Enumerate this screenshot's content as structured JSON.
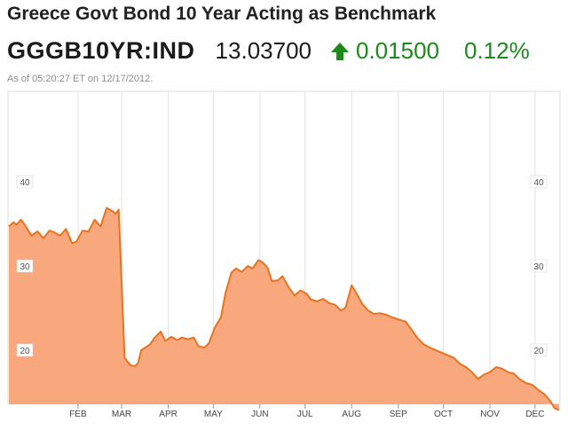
{
  "header": {
    "title": "Greece Govt Bond 10 Year Acting as Benchmark",
    "ticker": "GGGB10YR:IND",
    "price": "13.03700",
    "change": "0.01500",
    "change_pct": "0.12%",
    "timestamp": "As of 05:20:27 ET on 12/17/2012.",
    "arrow_icon": "up-arrow-icon",
    "up_color": "#1a8a1a"
  },
  "chart_data": {
    "type": "area",
    "title": "",
    "xlabel": "",
    "ylabel": "",
    "ylim": [
      10,
      45
    ],
    "xlim": [
      "2011-12-17",
      "2012-12-17"
    ],
    "y_ticks": [
      "40",
      "30",
      "20"
    ],
    "y_tick_values": [
      40,
      30,
      20
    ],
    "x_ticks": [
      {
        "label": "FEB",
        "date": "2012-02-01"
      },
      {
        "label": "MAR",
        "date": "2012-03-01"
      },
      {
        "label": "APR",
        "date": "2012-04-01"
      },
      {
        "label": "MAY",
        "date": "2012-05-01"
      },
      {
        "label": "JUN",
        "date": "2012-06-01"
      },
      {
        "label": "JUL",
        "date": "2012-07-01"
      },
      {
        "label": "AUG",
        "date": "2012-08-01"
      },
      {
        "label": "SEP",
        "date": "2012-09-01"
      },
      {
        "label": "OCT",
        "date": "2012-10-01"
      },
      {
        "label": "NOV",
        "date": "2012-11-01"
      },
      {
        "label": "DEC",
        "date": "2012-12-01"
      }
    ],
    "grid": "vertical",
    "fill_color": "#f9a77c",
    "line_color": "#e8731e",
    "series": [
      {
        "x": [
          "2011-12-17",
          "2011-12-20",
          "2011-12-22",
          "2011-12-25",
          "2011-12-28",
          "2012-01-01",
          "2012-01-05",
          "2012-01-09",
          "2012-01-13",
          "2012-01-16",
          "2012-01-20",
          "2012-01-24",
          "2012-01-28",
          "2012-01-31",
          "2012-02-04",
          "2012-02-08",
          "2012-02-12",
          "2012-02-16",
          "2012-02-20",
          "2012-02-24",
          "2012-02-26",
          "2012-02-28",
          "2012-03-03",
          "2012-03-07",
          "2012-03-10",
          "2012-03-12",
          "2012-03-14",
          "2012-03-20",
          "2012-03-23",
          "2012-03-27",
          "2012-03-30",
          "2012-04-03",
          "2012-04-07",
          "2012-04-10",
          "2012-04-14",
          "2012-04-18",
          "2012-04-21",
          "2012-04-25",
          "2012-04-28",
          "2012-05-02",
          "2012-05-06",
          "2012-05-09",
          "2012-05-13",
          "2012-05-16",
          "2012-05-20",
          "2012-05-24",
          "2012-05-27",
          "2012-05-31",
          "2012-06-03",
          "2012-06-06",
          "2012-06-09",
          "2012-06-13",
          "2012-06-16",
          "2012-06-20",
          "2012-06-24",
          "2012-06-28",
          "2012-07-02",
          "2012-07-05",
          "2012-07-09",
          "2012-07-13",
          "2012-07-17",
          "2012-07-21",
          "2012-07-25",
          "2012-07-28",
          "2012-08-01",
          "2012-08-05",
          "2012-08-08",
          "2012-08-12",
          "2012-08-16",
          "2012-08-20",
          "2012-08-24",
          "2012-08-28",
          "2012-09-02",
          "2012-09-06",
          "2012-09-10",
          "2012-09-14",
          "2012-09-18",
          "2012-09-22",
          "2012-09-26",
          "2012-09-30",
          "2012-10-04",
          "2012-10-08",
          "2012-10-12",
          "2012-10-16",
          "2012-10-20",
          "2012-10-24",
          "2012-10-28",
          "2012-11-01",
          "2012-11-05",
          "2012-11-09",
          "2012-11-13",
          "2012-11-17",
          "2012-11-21",
          "2012-11-25",
          "2012-11-29",
          "2012-12-03",
          "2012-12-07",
          "2012-12-11",
          "2012-12-14",
          "2012-12-17"
        ],
        "values": [
          34.8,
          35.3,
          35.0,
          35.6,
          34.9,
          33.7,
          34.2,
          33.4,
          34.3,
          34.1,
          33.7,
          34.5,
          32.8,
          33.0,
          34.3,
          34.2,
          35.6,
          34.8,
          37.0,
          36.6,
          36.3,
          36.8,
          19.2,
          18.3,
          18.2,
          18.6,
          20.1,
          20.8,
          21.6,
          22.3,
          21.2,
          21.7,
          21.3,
          21.6,
          21.4,
          21.6,
          20.6,
          20.4,
          20.9,
          22.8,
          24.0,
          26.8,
          29.3,
          29.8,
          29.4,
          30.1,
          29.8,
          30.8,
          30.5,
          29.9,
          28.3,
          28.4,
          28.9,
          27.6,
          26.6,
          27.2,
          26.8,
          26.1,
          25.9,
          26.2,
          25.7,
          25.5,
          24.8,
          25.2,
          27.8,
          26.6,
          25.6,
          24.8,
          24.4,
          24.5,
          24.3,
          24.0,
          23.7,
          23.5,
          22.5,
          21.5,
          20.8,
          20.4,
          20.1,
          19.8,
          19.5,
          19.2,
          18.5,
          18.1,
          17.5,
          16.7,
          17.2,
          17.5,
          18.1,
          17.9,
          17.5,
          17.3,
          16.6,
          16.2,
          16.0,
          15.4,
          14.9,
          14.1,
          13.2,
          13.0
        ]
      }
    ]
  }
}
